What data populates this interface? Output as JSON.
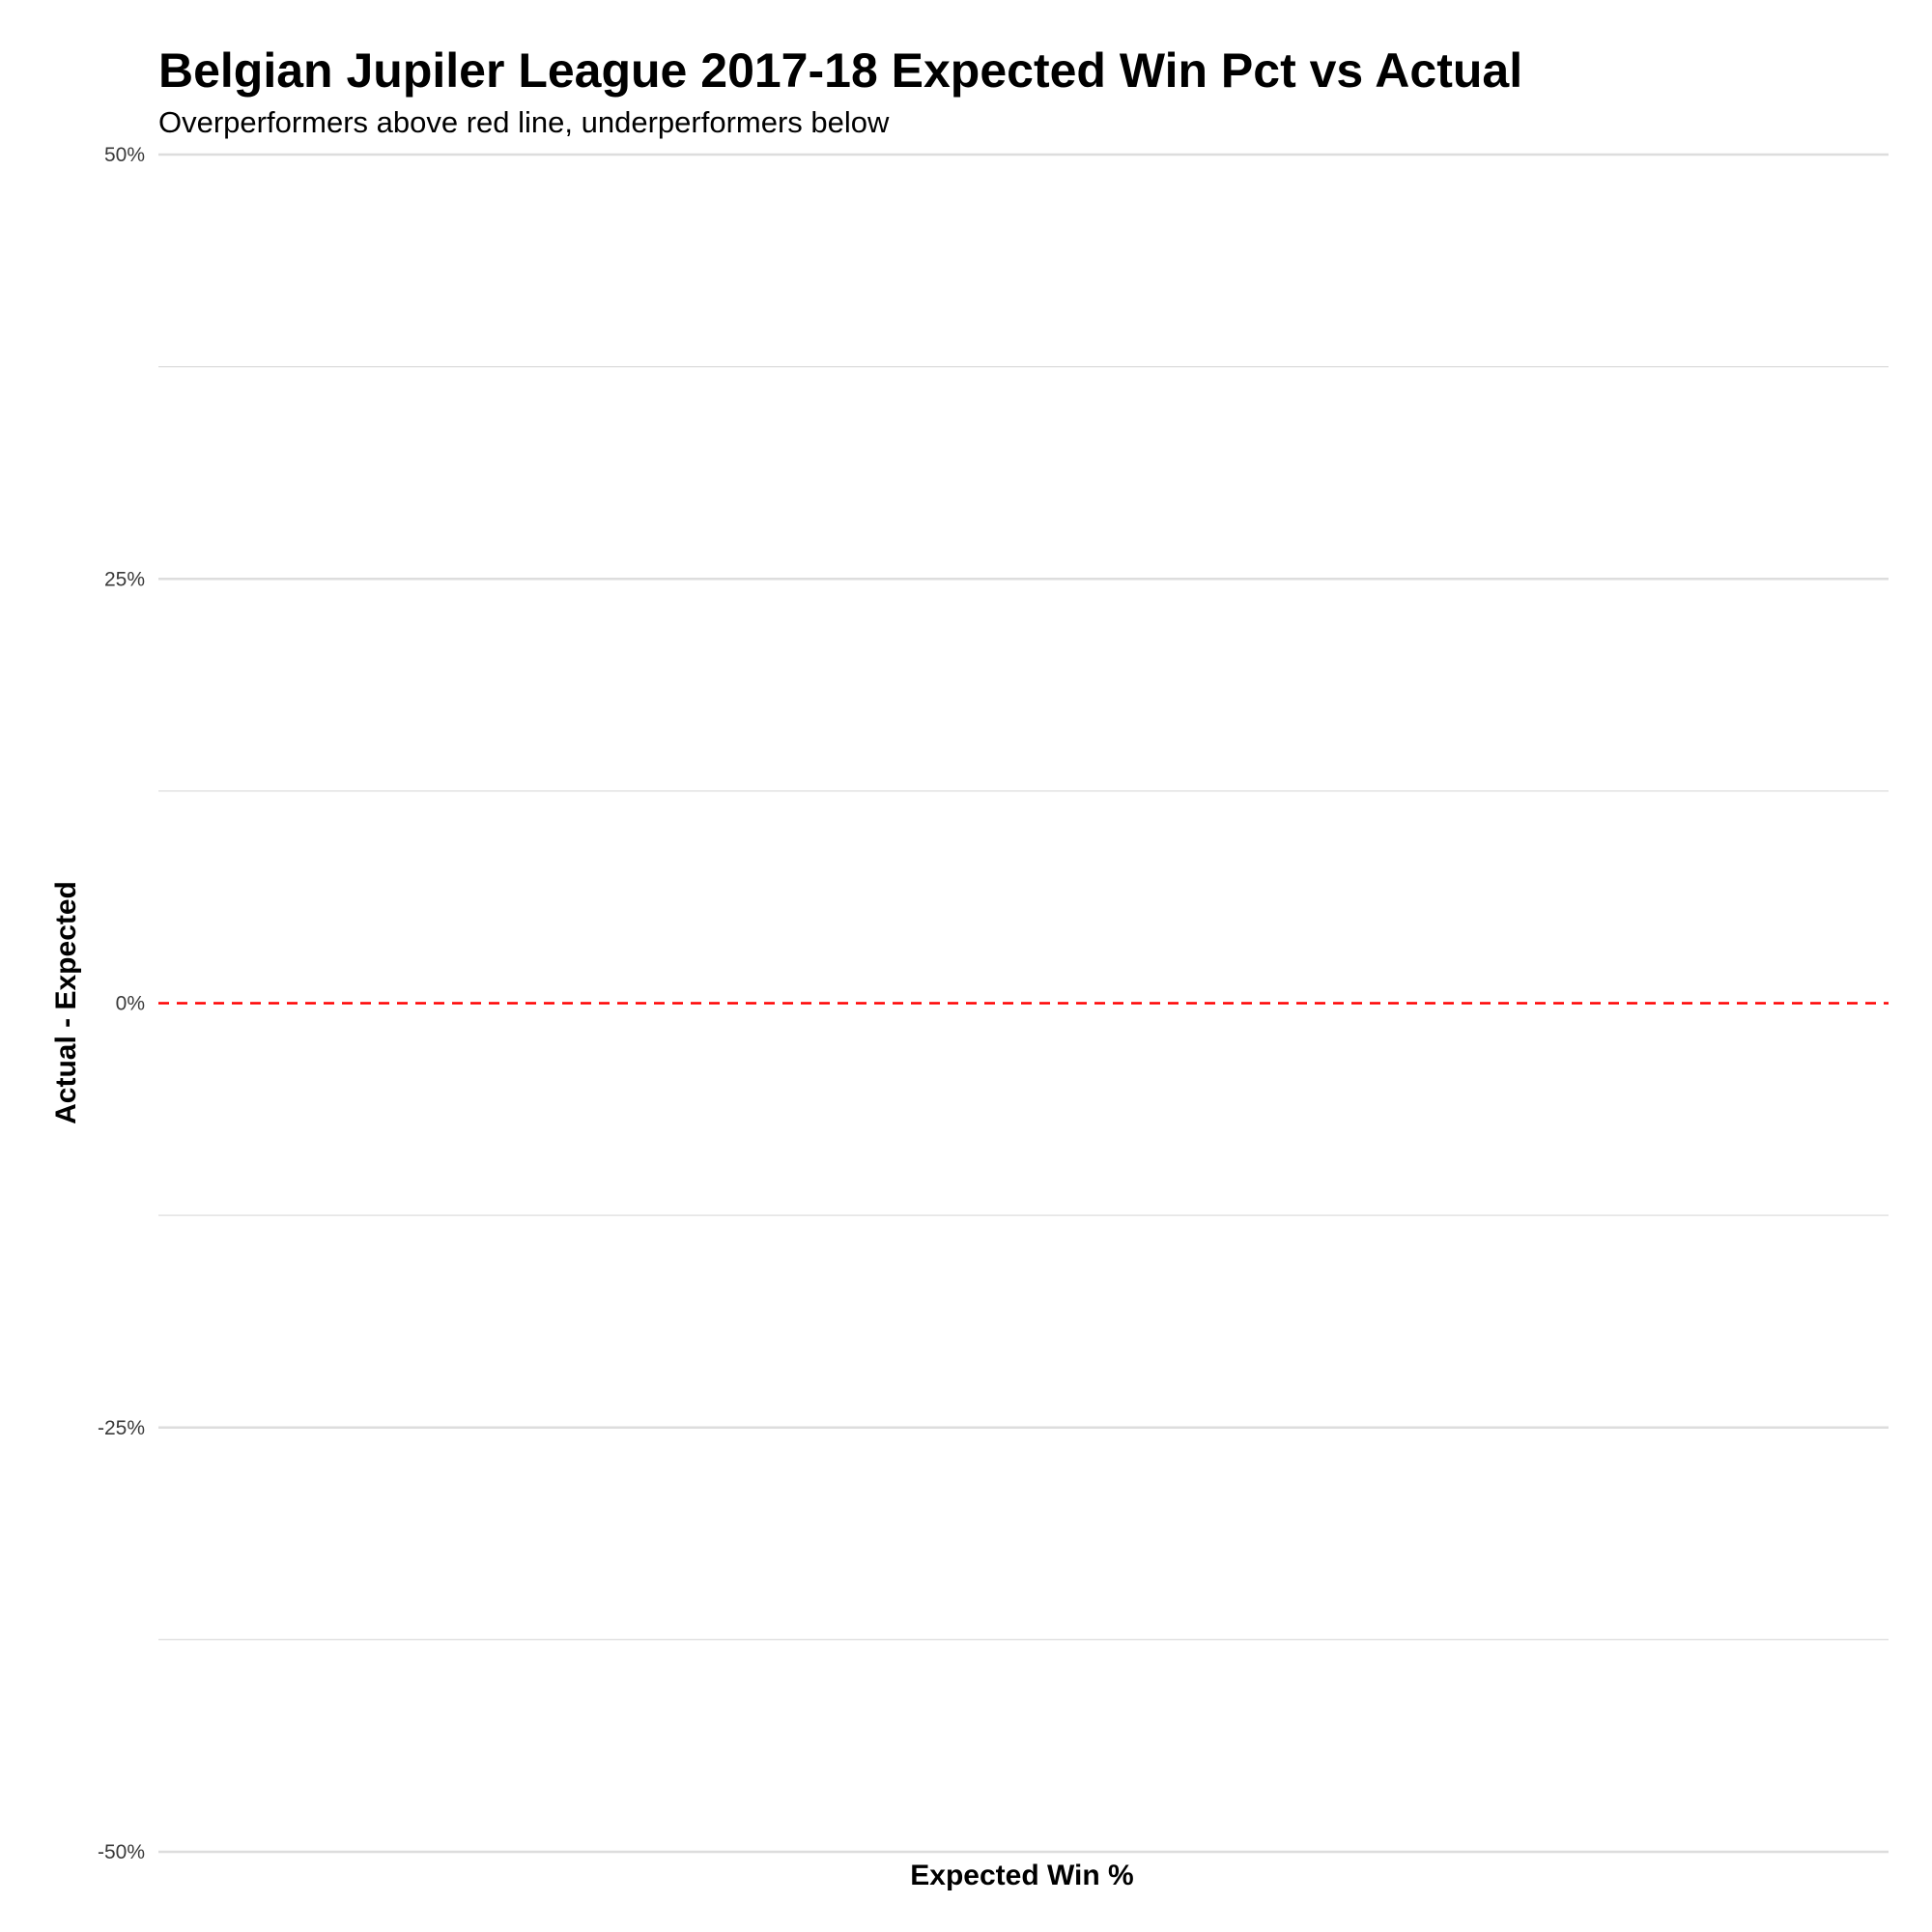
{
  "chart_data": {
    "type": "scatter",
    "title": "Belgian Jupiler League 2017-18 Expected Win Pct vs Actual",
    "subtitle": "Overperformers above red line, underperformers below",
    "xlabel": "Expected Win %",
    "ylabel": "Actual - Expected",
    "ylim": [
      -0.5,
      0.5
    ],
    "y_ticks": [
      {
        "value": 0.5,
        "label": "50%"
      },
      {
        "value": 0.25,
        "label": "25%"
      },
      {
        "value": 0,
        "label": "0%"
      },
      {
        "value": -0.25,
        "label": "-25%"
      },
      {
        "value": -0.5,
        "label": "-50%"
      }
    ],
    "y_minor_gridlines": [
      0.375,
      0.125,
      -0.125,
      -0.375
    ],
    "x_ticks": [],
    "reference_line": {
      "y": 0,
      "style": "dashed",
      "color": "#ff0000"
    },
    "grid": true,
    "grid_color": "#dddddd",
    "points": []
  }
}
